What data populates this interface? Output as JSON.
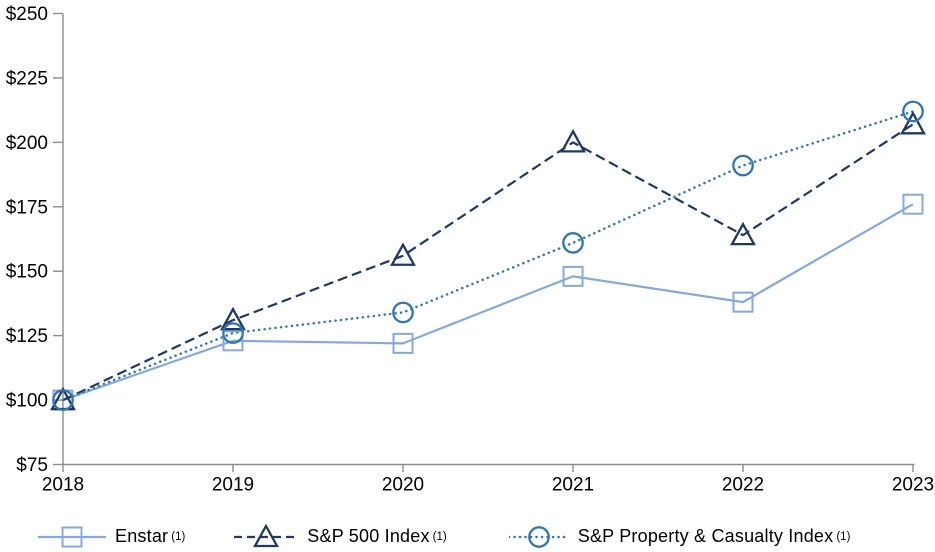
{
  "figure": {
    "footnote_marker": "(1)"
  },
  "chart_data": {
    "type": "line",
    "title": "",
    "xlabel": "",
    "ylabel": "",
    "x_labels": [
      "2018",
      "2019",
      "2020",
      "2021",
      "2022",
      "2023"
    ],
    "y_tick_labels": [
      "$250",
      "$225",
      "$200",
      "$175",
      "$150",
      "$125",
      "$100",
      "$75"
    ],
    "y_tick_values": [
      250,
      225,
      200,
      175,
      150,
      125,
      100,
      75
    ],
    "ylim": [
      75,
      250
    ],
    "grid": false,
    "legend_position": "bottom",
    "axis_color": "#8C8C8C",
    "text_color": "#000000",
    "series": [
      {
        "name": "Enstar",
        "footnote": "(1)",
        "values": [
          100,
          123,
          122,
          148,
          138,
          176
        ],
        "color": "#84AADC",
        "marker": "square",
        "line_style": "solid"
      },
      {
        "name": "S&P 500 Index",
        "footnote": "(1)",
        "values": [
          100,
          131,
          156,
          200,
          164,
          207
        ],
        "color": "#1F3864",
        "marker": "triangle",
        "line_style": "dashed"
      },
      {
        "name": "S&P Property & Casualty Index",
        "footnote": "(1)",
        "values": [
          100,
          126,
          134,
          161,
          191,
          212
        ],
        "color": "#2E75B6",
        "marker": "circle",
        "line_style": "dotted"
      }
    ]
  }
}
